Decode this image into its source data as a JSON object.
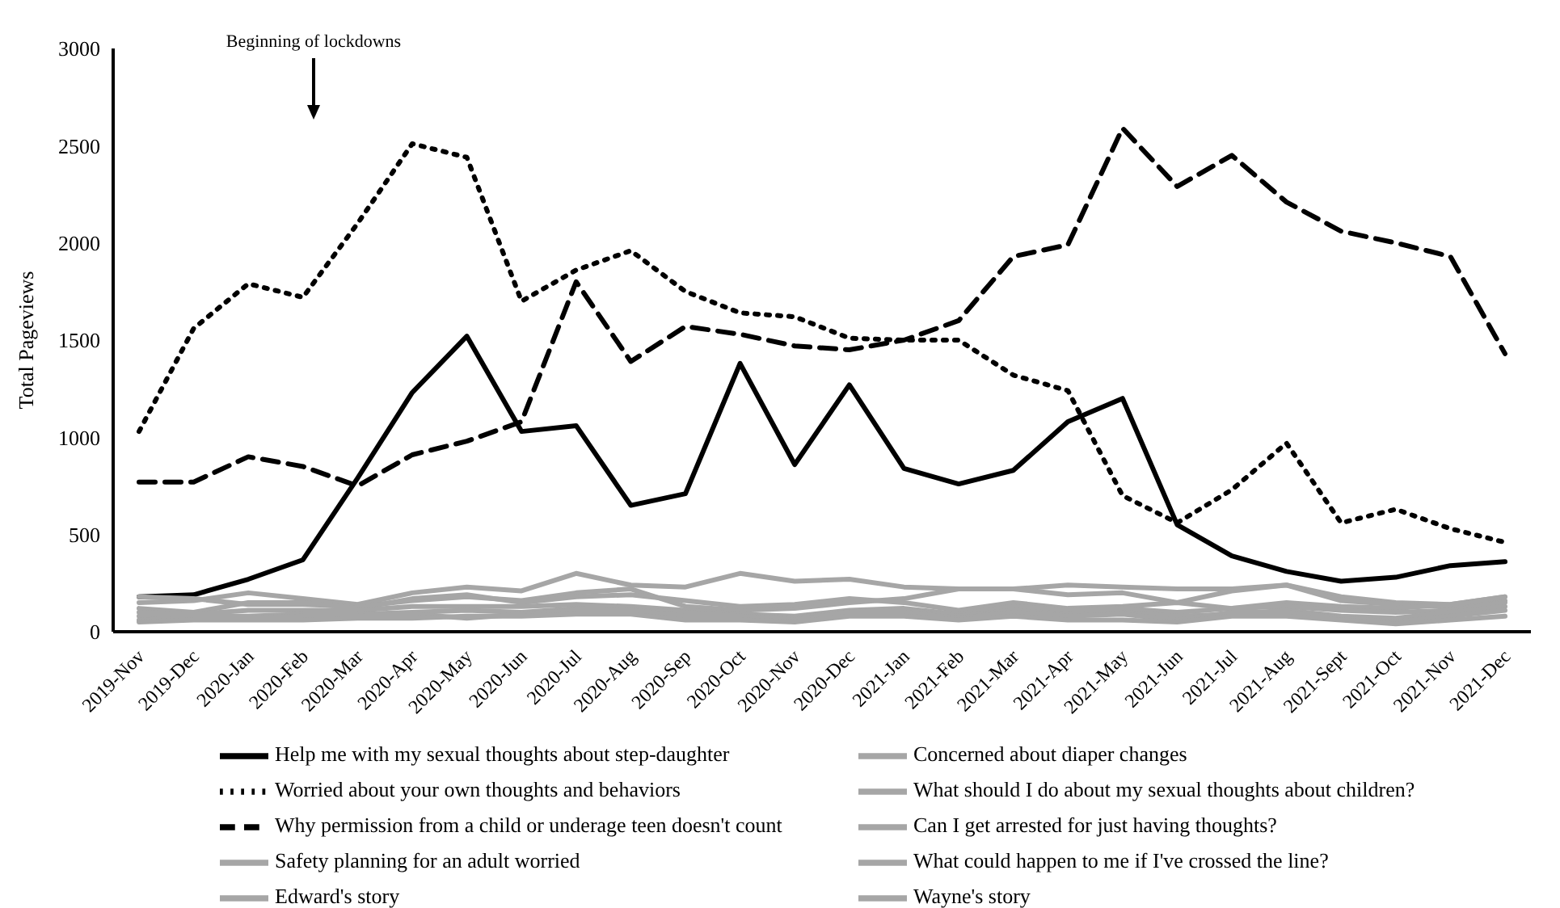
{
  "chart_data": {
    "type": "line",
    "ylabel": "Total Pageviews",
    "categories": [
      "2019-Nov",
      "2019-Dec",
      "2020-Jan",
      "2020-Feb",
      "2020-Mar",
      "2020-Apr",
      "2020-May",
      "2020-Jun",
      "2020-Jul",
      "2020-Aug",
      "2020-Sep",
      "2020-Oct",
      "2020-Nov",
      "2020-Dec",
      "2021-Jan",
      "2021-Feb",
      "2021-Mar",
      "2021-Apr",
      "2021-May",
      "2021-Jun",
      "2021-Jul",
      "2021-Aug",
      "2021-Sept",
      "2021-Oct",
      "2021-Nov",
      "2021-Dec"
    ],
    "ylim": [
      0,
      3000
    ],
    "yticks": [
      0,
      500,
      1000,
      1500,
      2000,
      2500,
      3000
    ],
    "grid": false,
    "legend": "bottom",
    "marker": "none",
    "annotations": [
      "Beginning of lockdowns"
    ],
    "series": [
      {
        "name": "Help me with my sexual thoughts about step-daughter",
        "color": "#000000",
        "line_style": "solid",
        "values": [
          180,
          190,
          270,
          370,
          790,
          1230,
          1520,
          1030,
          1060,
          650,
          710,
          1380,
          860,
          1270,
          840,
          760,
          830,
          1080,
          1200,
          550,
          390,
          310,
          260,
          280,
          340,
          360
        ]
      },
      {
        "name": "Concerned about diaper changes",
        "color": "#a6a6a6",
        "line_style": "solid",
        "values": [
          150,
          160,
          200,
          170,
          140,
          200,
          230,
          210,
          300,
          240,
          230,
          300,
          260,
          270,
          230,
          220,
          220,
          240,
          230,
          220,
          220,
          240,
          180,
          150,
          140,
          180
        ]
      },
      {
        "name": "Worried about your own thoughts and behaviors",
        "color": "#000000",
        "line_style": "dotted",
        "values": [
          1030,
          1560,
          1790,
          1720,
          2100,
          2510,
          2440,
          1700,
          1860,
          1960,
          1750,
          1640,
          1620,
          1510,
          1500,
          1500,
          1320,
          1240,
          700,
          560,
          730,
          970,
          560,
          630,
          530,
          460
        ]
      },
      {
        "name": "What should I do about my sexual thoughts about children?",
        "color": "#a6a6a6",
        "line_style": "solid",
        "values": [
          180,
          170,
          140,
          140,
          130,
          160,
          180,
          160,
          200,
          220,
          130,
          110,
          120,
          150,
          170,
          220,
          220,
          190,
          200,
          150,
          210,
          240,
          160,
          140,
          130,
          160
        ]
      },
      {
        "name": "Why permission from a child or underage teen doesn't count",
        "color": "#000000",
        "line_style": "dashed",
        "values": [
          770,
          770,
          900,
          850,
          750,
          910,
          980,
          1080,
          1800,
          1390,
          1570,
          1530,
          1470,
          1450,
          1500,
          1600,
          1930,
          1990,
          2590,
          2290,
          2450,
          2210,
          2060,
          2000,
          1930,
          1430
        ]
      },
      {
        "name": "Can I get arrested for just having thoughts?",
        "color": "#a6a6a6",
        "line_style": "solid",
        "values": [
          120,
          100,
          150,
          150,
          120,
          170,
          190,
          150,
          180,
          190,
          160,
          130,
          140,
          170,
          150,
          110,
          150,
          120,
          130,
          150,
          120,
          150,
          130,
          120,
          140,
          180
        ]
      },
      {
        "name": "Safety planning for an adult worried",
        "color": "#a6a6a6",
        "line_style": "solid",
        "values": [
          100,
          90,
          110,
          110,
          110,
          130,
          130,
          130,
          140,
          130,
          110,
          90,
          80,
          110,
          120,
          90,
          130,
          110,
          120,
          100,
          120,
          130,
          110,
          100,
          110,
          150
        ]
      },
      {
        "name": "What could happen to me if I've crossed the line?",
        "color": "#a6a6a6",
        "line_style": "solid",
        "values": [
          80,
          80,
          80,
          90,
          90,
          100,
          110,
          100,
          120,
          110,
          100,
          80,
          70,
          100,
          110,
          80,
          110,
          90,
          100,
          80,
          90,
          110,
          80,
          70,
          100,
          130
        ]
      },
      {
        "name": "Edward's story",
        "color": "#a6a6a6",
        "line_style": "solid",
        "values": [
          60,
          70,
          70,
          80,
          80,
          90,
          70,
          90,
          110,
          110,
          80,
          80,
          60,
          100,
          100,
          70,
          100,
          80,
          90,
          60,
          100,
          100,
          70,
          50,
          80,
          110
        ]
      },
      {
        "name": "Wayne's story",
        "color": "#a6a6a6",
        "line_style": "solid",
        "values": [
          50,
          60,
          60,
          60,
          70,
          70,
          80,
          80,
          90,
          90,
          60,
          60,
          50,
          80,
          80,
          60,
          80,
          60,
          60,
          50,
          80,
          80,
          60,
          40,
          60,
          80
        ]
      }
    ]
  }
}
